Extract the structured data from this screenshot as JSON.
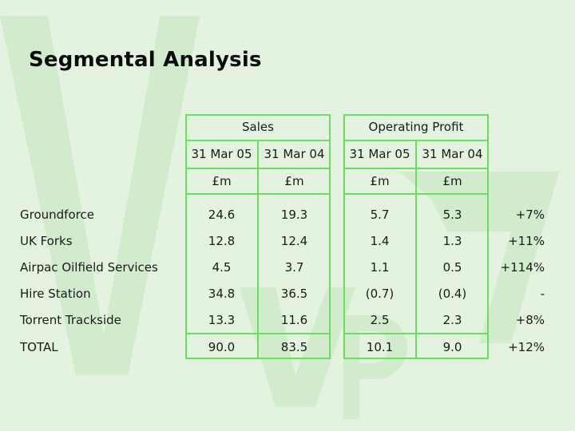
{
  "title": "Segmental Analysis",
  "headers": {
    "sales": "Sales",
    "operating_profit": "Operating Profit",
    "sales_dates": [
      "31 Mar 05",
      "31 Mar 04"
    ],
    "profit_dates": [
      "31 Mar 05",
      "31 Mar 04"
    ],
    "sales_units": [
      "£m",
      "£m"
    ],
    "profit_units": [
      "£m",
      "£m"
    ]
  },
  "rows": [
    {
      "label": "Groundforce",
      "sales_05": "24.6",
      "sales_04": "19.3",
      "profit_05": "5.7",
      "profit_04": "5.3",
      "change": "+7%"
    },
    {
      "label": "UK Forks",
      "sales_05": "12.8",
      "sales_04": "12.4",
      "profit_05": "1.4",
      "profit_04": "1.3",
      "change": "+11%"
    },
    {
      "label": "Airpac Oilfield Services",
      "sales_05": "4.5",
      "sales_04": "3.7",
      "profit_05": "1.1",
      "profit_04": "0.5",
      "change": "+114%"
    },
    {
      "label": "Hire Station",
      "sales_05": "34.8",
      "sales_04": "36.5",
      "profit_05": "(0.7)",
      "profit_04": "(0.4)",
      "change": "-"
    },
    {
      "label": "Torrent Trackside",
      "sales_05": "13.3",
      "sales_04": "11.6",
      "profit_05": "2.5",
      "profit_04": "2.3",
      "change": "+8%"
    }
  ],
  "total": {
    "label": "TOTAL",
    "sales_05": "90.0",
    "sales_04": "83.5",
    "profit_05": "10.1",
    "profit_04": "9.0",
    "change": "+12%"
  },
  "colors": {
    "background": "#e3f3df",
    "border": "#67e05c",
    "watermark": "#d2ebcc"
  }
}
